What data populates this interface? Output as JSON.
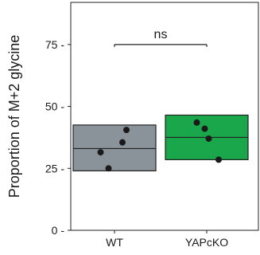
{
  "chart_data": {
    "type": "crossbar",
    "ylabel": "Proportion of M+2 glycine",
    "ylim": [
      0,
      92
    ],
    "y_ticks": [
      0,
      25,
      50,
      75
    ],
    "y_tick_labels": [
      "0 -",
      "25 -",
      "50 -",
      "75 -"
    ],
    "categories": [
      "WT",
      "YAPcKO"
    ],
    "groups": [
      {
        "name": "WT",
        "color": "#8a9399",
        "box": {
          "lower": 24,
          "mean": 33,
          "upper": 42.5
        },
        "points": [
          {
            "jitter": -0.35,
            "y": 31.5
          },
          {
            "jitter": -0.15,
            "y": 25
          },
          {
            "jitter": 0.2,
            "y": 35.5
          },
          {
            "jitter": 0.3,
            "y": 40.5
          }
        ]
      },
      {
        "name": "YAPcKO",
        "color": "#1aa64a",
        "box": {
          "lower": 28.5,
          "mean": 37.5,
          "upper": 46.5
        },
        "points": [
          {
            "jitter": -0.25,
            "y": 43.5
          },
          {
            "jitter": -0.05,
            "y": 41
          },
          {
            "jitter": 0.05,
            "y": 37
          },
          {
            "jitter": 0.3,
            "y": 28.5
          }
        ]
      }
    ],
    "significance": {
      "label": "ns",
      "y": 75,
      "from": "WT",
      "to": "YAPcKO"
    },
    "grid": false,
    "panel_border": true
  }
}
